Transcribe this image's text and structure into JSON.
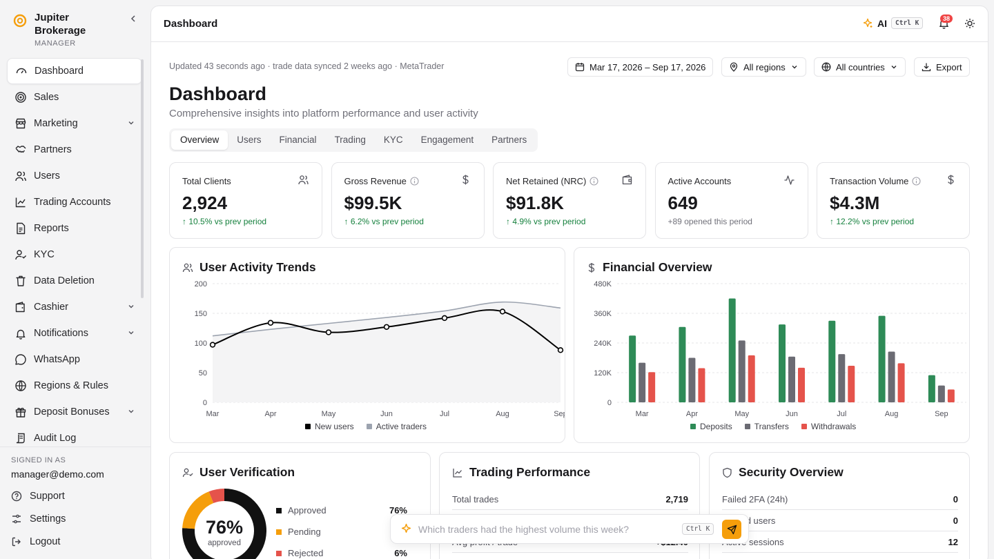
{
  "brand": {
    "name": "Jupiter Brokerage",
    "role": "MANAGER"
  },
  "nav": [
    {
      "label": "Dashboard",
      "icon": "gauge-icon",
      "active": true
    },
    {
      "label": "Sales",
      "icon": "target-icon"
    },
    {
      "label": "Marketing",
      "icon": "store-icon",
      "expandable": true
    },
    {
      "label": "Partners",
      "icon": "handshake-icon"
    },
    {
      "label": "Users",
      "icon": "users-icon"
    },
    {
      "label": "Trading Accounts",
      "icon": "line-chart-icon"
    },
    {
      "label": "Reports",
      "icon": "file-text-icon"
    },
    {
      "label": "KYC",
      "icon": "user-check-icon"
    },
    {
      "label": "Data Deletion",
      "icon": "trash-icon"
    },
    {
      "label": "Cashier",
      "icon": "wallet-icon",
      "expandable": true
    },
    {
      "label": "Notifications",
      "icon": "bell-icon",
      "expandable": true
    },
    {
      "label": "WhatsApp",
      "icon": "message-circle-icon"
    },
    {
      "label": "Regions & Rules",
      "icon": "globe-icon"
    },
    {
      "label": "Deposit Bonuses",
      "icon": "gift-icon",
      "expandable": true
    },
    {
      "label": "Audit Log",
      "icon": "scroll-text-icon"
    }
  ],
  "footer": {
    "signed_label": "SIGNED IN AS",
    "email": "manager@demo.com",
    "support": "Support",
    "settings": "Settings",
    "logout": "Logout"
  },
  "topbar": {
    "title": "Dashboard",
    "ai_label": "AI",
    "ai_shortcut": "Ctrl K",
    "notification_count": "38"
  },
  "header": {
    "updated": "Updated 43 seconds ago · trade data synced 2 weeks ago · MetaTrader",
    "date_range": "Mar 17, 2026 – Sep 17, 2026",
    "regions": "All regions",
    "countries": "All countries",
    "export": "Export",
    "title": "Dashboard",
    "subtitle": "Comprehensive insights into platform performance and user activity"
  },
  "tabs": [
    "Overview",
    "Users",
    "Financial",
    "Trading",
    "KYC",
    "Engagement",
    "Partners"
  ],
  "active_tab": "Overview",
  "kpis": [
    {
      "label": "Total Clients",
      "value": "2,924",
      "change": "↑ 10.5% vs prev period",
      "icon": "users-icon",
      "info": false
    },
    {
      "label": "Gross Revenue",
      "value": "$99.5K",
      "change": "↑ 6.2% vs prev period",
      "icon": "dollar-icon",
      "info": true
    },
    {
      "label": "Net Retained (NRC)",
      "value": "$91.8K",
      "change": "↑ 4.9% vs prev period",
      "icon": "wallet-icon",
      "info": true
    },
    {
      "label": "Active Accounts",
      "value": "649",
      "change": "+89 opened this period",
      "icon": "activity-icon",
      "info": false
    },
    {
      "label": "Transaction Volume",
      "value": "$4.3M",
      "change": "↑ 12.2% vs prev period",
      "icon": "dollar-icon",
      "info": true
    }
  ],
  "user_activity": {
    "title": "User Activity Trends"
  },
  "financial": {
    "title": "Financial Overview"
  },
  "chart_data": [
    {
      "type": "line",
      "title": "User Activity Trends",
      "categories": [
        "Mar",
        "Apr",
        "May",
        "Jun",
        "Jul",
        "Aug",
        "Sep"
      ],
      "ylim": [
        0,
        200
      ],
      "yticks": [
        "0",
        "50",
        "100",
        "150",
        "200"
      ],
      "grid": true,
      "legend": "bottom",
      "series": [
        {
          "name": "New users",
          "color": "#000000",
          "values": [
            97,
            134,
            118,
            127,
            142,
            153,
            88
          ]
        },
        {
          "name": "Active traders",
          "color": "#9ca3af",
          "values": [
            112,
            123,
            133,
            143,
            154,
            169,
            159
          ]
        }
      ]
    },
    {
      "type": "bar",
      "title": "Financial Overview",
      "categories": [
        "Mar",
        "Apr",
        "May",
        "Jun",
        "Jul",
        "Aug",
        "Sep"
      ],
      "ylim": [
        0,
        480000
      ],
      "yticks": [
        "0",
        "120K",
        "240K",
        "360K",
        "480K"
      ],
      "grid": true,
      "legend": "bottom",
      "series": [
        {
          "name": "Deposits",
          "color": "#2e8b57",
          "values": [
            270000,
            305000,
            420000,
            315000,
            330000,
            350000,
            110000
          ]
        },
        {
          "name": "Transfers",
          "color": "#6b6b73",
          "values": [
            160000,
            180000,
            250000,
            185000,
            195000,
            205000,
            68000
          ]
        },
        {
          "name": "Withdrawals",
          "color": "#e5534b",
          "values": [
            122000,
            138000,
            190000,
            140000,
            148000,
            158000,
            52000
          ]
        }
      ]
    },
    {
      "type": "pie",
      "title": "User Verification",
      "center_value": "76%",
      "center_label": "approved",
      "series": [
        {
          "name": "Approved",
          "value": 76,
          "color": "#111111"
        },
        {
          "name": "Pending",
          "value": 18,
          "color": "#f59e0b"
        },
        {
          "name": "Rejected",
          "value": 6,
          "color": "#e5534b"
        }
      ]
    }
  ],
  "verification": {
    "title": "User Verification",
    "center_value": "76%",
    "center_label": "approved",
    "rows": [
      {
        "label": "Approved",
        "pct": "76%",
        "color": "#111111"
      },
      {
        "label": "Pending",
        "pct": "",
        "color": "#f59e0b"
      },
      {
        "label": "Rejected",
        "pct": "6%",
        "color": "#e5534b"
      }
    ]
  },
  "trading": {
    "title": "Trading Performance",
    "rows": [
      {
        "label": "Total trades",
        "value": "2,719"
      },
      {
        "label": "",
        "value": ""
      },
      {
        "label": "Avg profit / trade",
        "value": "+$12.40"
      }
    ]
  },
  "security": {
    "title": "Security Overview",
    "rows": [
      {
        "label": "Failed 2FA (24h)",
        "value": "0"
      },
      {
        "label": "Locked users",
        "value": "0"
      },
      {
        "label": "Active sessions",
        "value": "12"
      }
    ]
  },
  "ask": {
    "placeholder": "Which traders had the highest volume this week?",
    "shortcut": "Ctrl K"
  }
}
